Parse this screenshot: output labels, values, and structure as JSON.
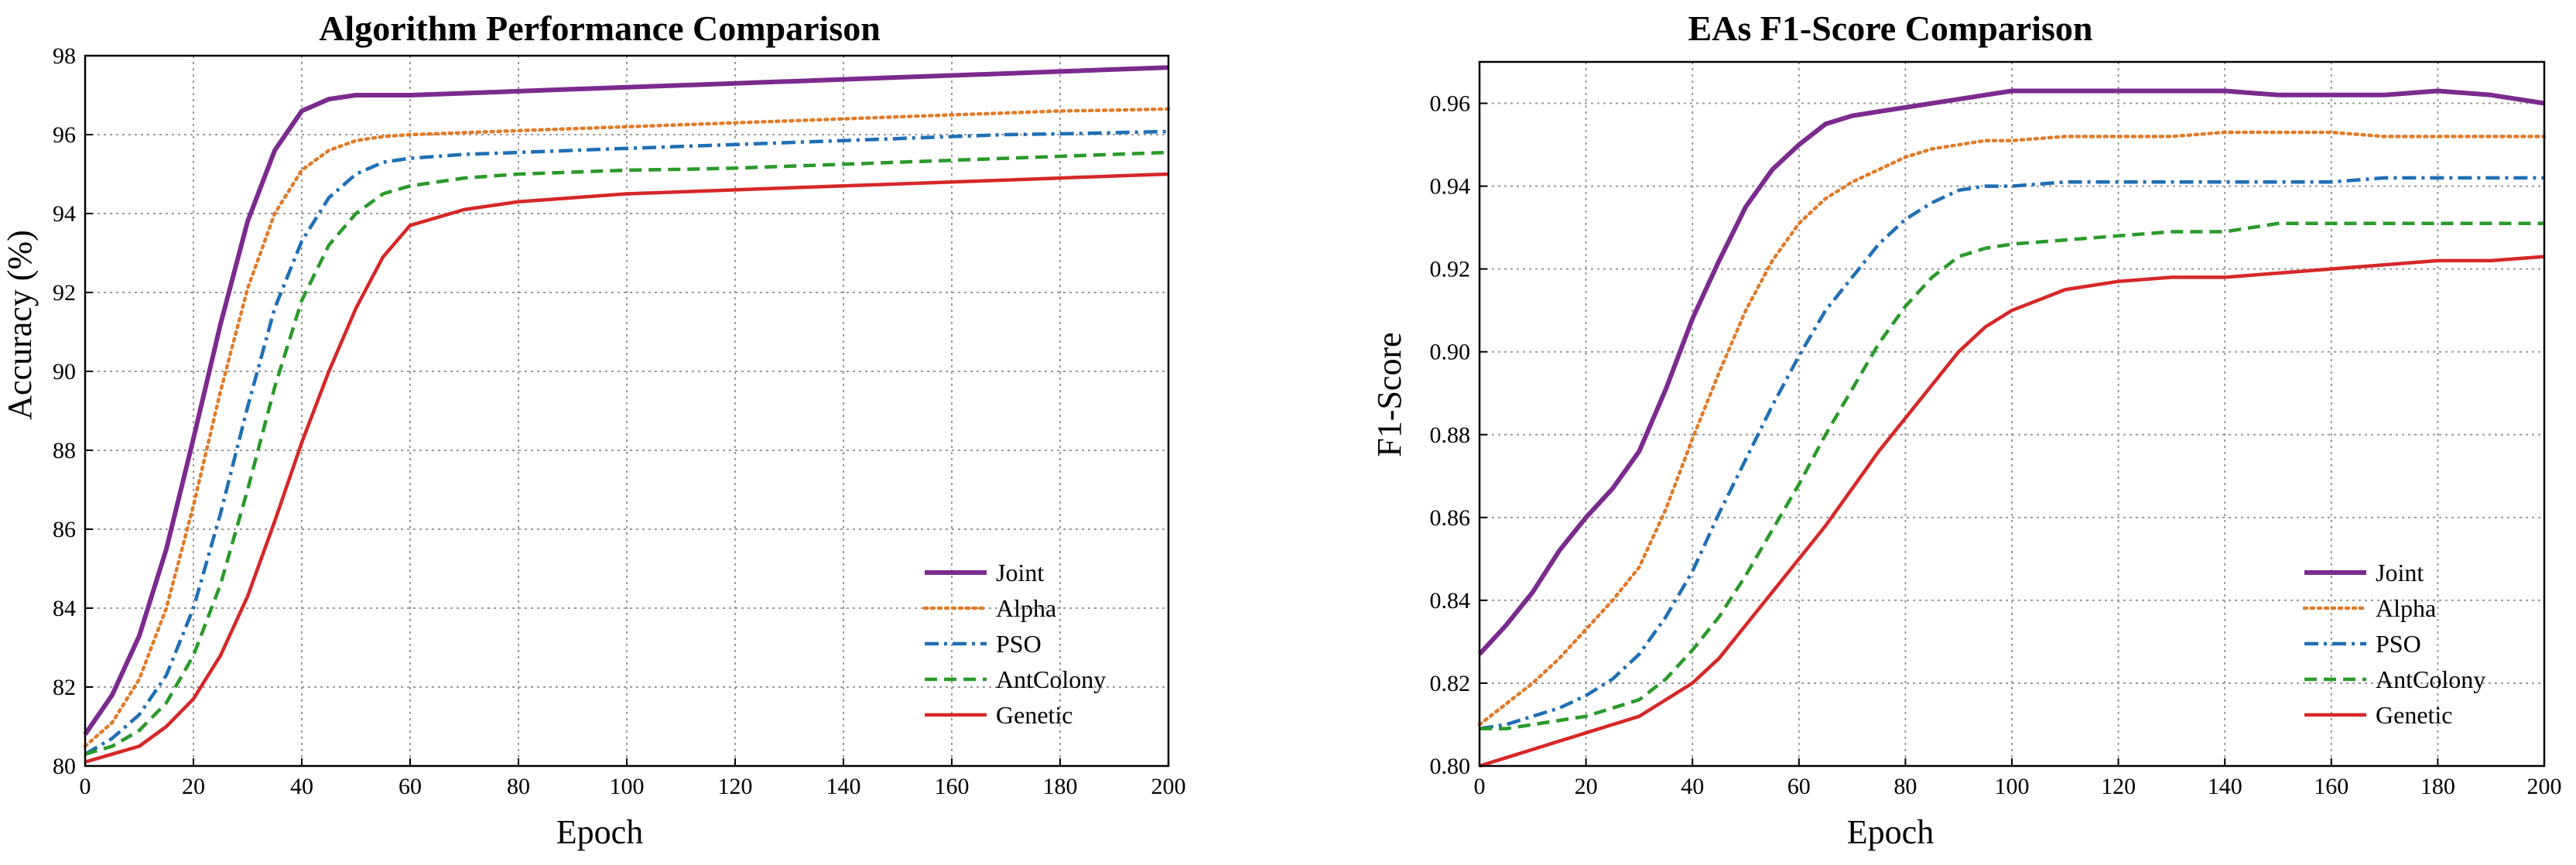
{
  "chart_data": [
    {
      "type": "line",
      "title": "Algorithm Performance Comparison",
      "xlabel": "Epoch",
      "ylabel": "Accuracy (%)",
      "xlim": [
        0,
        200
      ],
      "ylim": [
        80,
        98
      ],
      "xticks": [
        0,
        20,
        40,
        60,
        80,
        100,
        120,
        140,
        160,
        180,
        200
      ],
      "yticks": [
        80,
        82,
        84,
        86,
        88,
        90,
        92,
        94,
        96,
        98
      ],
      "grid": true,
      "legend_position": "bottom-right",
      "x": [
        0,
        5,
        10,
        15,
        20,
        25,
        30,
        35,
        40,
        45,
        50,
        55,
        60,
        70,
        80,
        90,
        100,
        110,
        120,
        130,
        140,
        150,
        160,
        170,
        180,
        190,
        200
      ],
      "series": [
        {
          "name": "Joint",
          "color": "#7b2a8e",
          "style": "solid",
          "values": [
            80.8,
            81.8,
            83.3,
            85.5,
            88.3,
            91.2,
            93.8,
            95.6,
            96.6,
            96.9,
            97.0,
            97.0,
            97.0,
            97.05,
            97.1,
            97.15,
            97.2,
            97.25,
            97.3,
            97.35,
            97.4,
            97.45,
            97.5,
            97.55,
            97.6,
            97.65,
            97.7
          ]
        },
        {
          "name": "Alpha",
          "color": "#e07b28",
          "style": "dotted",
          "values": [
            80.5,
            81.1,
            82.2,
            84.0,
            86.6,
            89.5,
            92.1,
            94.0,
            95.1,
            95.6,
            95.85,
            95.95,
            96.0,
            96.05,
            96.1,
            96.15,
            96.2,
            96.25,
            96.3,
            96.35,
            96.4,
            96.45,
            96.5,
            96.55,
            96.6,
            96.62,
            96.65
          ]
        },
        {
          "name": "PSO",
          "color": "#1f6fb5",
          "style": "dashdot",
          "values": [
            80.3,
            80.7,
            81.3,
            82.3,
            84.0,
            86.4,
            89.1,
            91.6,
            93.3,
            94.4,
            95.0,
            95.3,
            95.4,
            95.5,
            95.55,
            95.6,
            95.65,
            95.7,
            95.75,
            95.8,
            95.85,
            95.9,
            95.95,
            96.0,
            96.02,
            96.05,
            96.08
          ]
        },
        {
          "name": "AntColony",
          "color": "#2a9a2a",
          "style": "dashed",
          "values": [
            80.3,
            80.5,
            80.9,
            81.6,
            82.8,
            84.6,
            87.0,
            89.6,
            91.8,
            93.2,
            94.0,
            94.5,
            94.7,
            94.9,
            95.0,
            95.05,
            95.1,
            95.12,
            95.15,
            95.2,
            95.25,
            95.3,
            95.35,
            95.4,
            95.45,
            95.5,
            95.55
          ]
        },
        {
          "name": "Genetic",
          "color": "#d62728",
          "style": "solid",
          "values": [
            80.1,
            80.3,
            80.5,
            81.0,
            81.7,
            82.8,
            84.3,
            86.2,
            88.2,
            90.0,
            91.6,
            92.9,
            93.7,
            94.1,
            94.3,
            94.4,
            94.5,
            94.55,
            94.6,
            94.65,
            94.7,
            94.75,
            94.8,
            94.85,
            94.9,
            94.95,
            95.0
          ]
        }
      ]
    },
    {
      "type": "line",
      "title": "EAs F1-Score Comparison",
      "xlabel": "Epoch",
      "ylabel": "F1-Score",
      "xlim": [
        0,
        200
      ],
      "ylim": [
        0.8,
        0.97
      ],
      "xticks": [
        0,
        20,
        40,
        60,
        80,
        100,
        120,
        140,
        160,
        180,
        200
      ],
      "yticks": [
        0.8,
        0.82,
        0.84,
        0.86,
        0.88,
        0.9,
        0.92,
        0.94,
        0.96
      ],
      "ytick_labels": [
        "0.80",
        "0.82",
        "0.84",
        "0.86",
        "0.88",
        "0.90",
        "0.92",
        "0.94",
        "0.96"
      ],
      "grid": true,
      "legend_position": "bottom-right",
      "x": [
        0,
        5,
        10,
        15,
        20,
        25,
        30,
        35,
        40,
        45,
        50,
        55,
        60,
        65,
        70,
        75,
        80,
        85,
        90,
        95,
        100,
        110,
        120,
        130,
        140,
        150,
        160,
        170,
        180,
        190,
        200
      ],
      "series": [
        {
          "name": "Joint",
          "color": "#7b2a8e",
          "style": "solid",
          "values": [
            0.827,
            0.834,
            0.842,
            0.852,
            0.86,
            0.867,
            0.876,
            0.891,
            0.908,
            0.922,
            0.935,
            0.944,
            0.95,
            0.955,
            0.957,
            0.958,
            0.959,
            0.96,
            0.961,
            0.962,
            0.963,
            0.963,
            0.963,
            0.963,
            0.963,
            0.962,
            0.962,
            0.962,
            0.963,
            0.962,
            0.96
          ]
        },
        {
          "name": "Alpha",
          "color": "#e07b28",
          "style": "dotted",
          "values": [
            0.81,
            0.815,
            0.82,
            0.826,
            0.833,
            0.84,
            0.848,
            0.862,
            0.879,
            0.895,
            0.91,
            0.922,
            0.931,
            0.937,
            0.941,
            0.944,
            0.947,
            0.949,
            0.95,
            0.951,
            0.951,
            0.952,
            0.952,
            0.952,
            0.953,
            0.953,
            0.953,
            0.952,
            0.952,
            0.952,
            0.952
          ]
        },
        {
          "name": "PSO",
          "color": "#1f6fb5",
          "style": "dashdot",
          "values": [
            0.809,
            0.81,
            0.812,
            0.814,
            0.817,
            0.821,
            0.827,
            0.836,
            0.847,
            0.861,
            0.874,
            0.887,
            0.899,
            0.91,
            0.918,
            0.926,
            0.932,
            0.936,
            0.939,
            0.94,
            0.94,
            0.941,
            0.941,
            0.941,
            0.941,
            0.941,
            0.941,
            0.942,
            0.942,
            0.942,
            0.942
          ]
        },
        {
          "name": "AntColony",
          "color": "#2a9a2a",
          "style": "dashed",
          "values": [
            0.809,
            0.809,
            0.81,
            0.811,
            0.812,
            0.814,
            0.816,
            0.821,
            0.828,
            0.836,
            0.846,
            0.857,
            0.868,
            0.88,
            0.891,
            0.902,
            0.911,
            0.918,
            0.923,
            0.925,
            0.926,
            0.927,
            0.928,
            0.929,
            0.929,
            0.931,
            0.931,
            0.931,
            0.931,
            0.931,
            0.931
          ]
        },
        {
          "name": "Genetic",
          "color": "#d62728",
          "style": "solid",
          "values": [
            0.8,
            0.802,
            0.804,
            0.806,
            0.808,
            0.81,
            0.812,
            0.816,
            0.82,
            0.826,
            0.834,
            0.842,
            0.85,
            0.858,
            0.867,
            0.876,
            0.884,
            0.892,
            0.9,
            0.906,
            0.91,
            0.915,
            0.917,
            0.918,
            0.918,
            0.919,
            0.92,
            0.921,
            0.922,
            0.922,
            0.923
          ]
        }
      ]
    }
  ]
}
